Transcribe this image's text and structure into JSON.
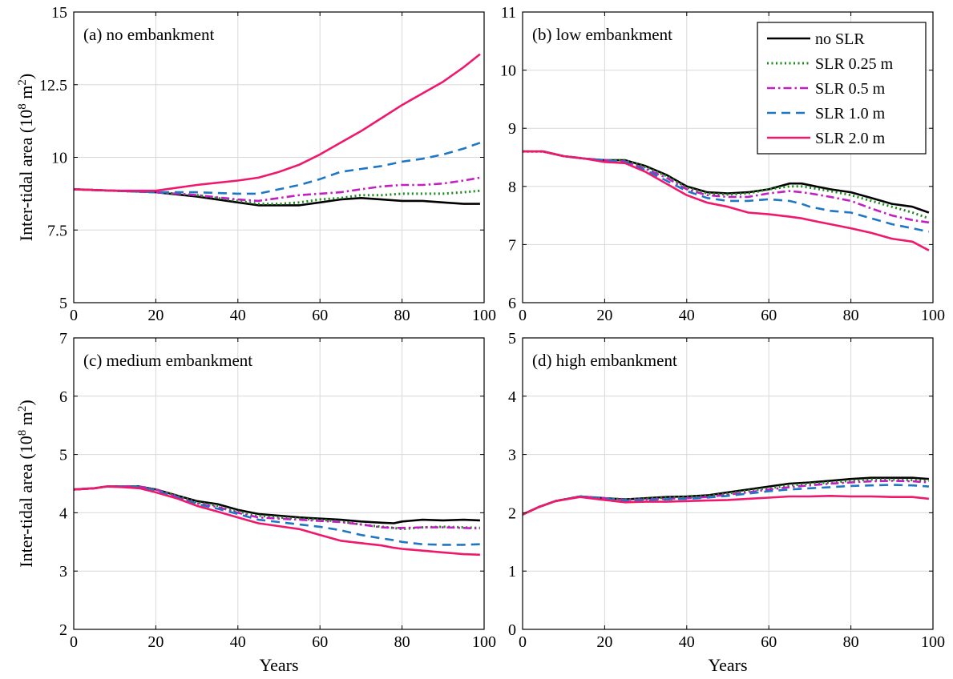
{
  "legend": [
    {
      "name": "no SLR",
      "color": "#000000",
      "dash": "solid"
    },
    {
      "name": "SLR 0.25 m",
      "color": "#1a8a1a",
      "dash": "dotted"
    },
    {
      "name": "SLR 0.5 m",
      "color": "#c21fc2",
      "dash": "dashdot"
    },
    {
      "name": "SLR 1.0 m",
      "color": "#1f77c4",
      "dash": "dashed"
    },
    {
      "name": "SLR 2.0 m",
      "color": "#f0186c",
      "dash": "solid"
    }
  ],
  "chart_data": [
    {
      "type": "line",
      "label": "(a)  no embankment",
      "xlabel": "",
      "ylabel": "Inter-tidal area (10^8 m^2)",
      "xlim": [
        0,
        100
      ],
      "ylim": [
        5,
        15
      ],
      "xticks": [
        0,
        20,
        40,
        60,
        80,
        100
      ],
      "yticks": [
        5,
        7.5,
        10,
        12.5,
        15
      ],
      "ytick_labels": [
        "5",
        "7.5",
        "10",
        "12.5",
        "15"
      ],
      "x": [
        0,
        10,
        20,
        30,
        40,
        45,
        50,
        55,
        60,
        65,
        70,
        75,
        80,
        85,
        90,
        95,
        99
      ],
      "series": [
        {
          "name": "no SLR",
          "values": [
            8.9,
            8.85,
            8.8,
            8.65,
            8.45,
            8.35,
            8.35,
            8.35,
            8.45,
            8.55,
            8.6,
            8.55,
            8.5,
            8.5,
            8.45,
            8.4,
            8.4
          ]
        },
        {
          "name": "SLR 0.25 m",
          "values": [
            8.9,
            8.85,
            8.8,
            8.7,
            8.5,
            8.4,
            8.4,
            8.45,
            8.55,
            8.6,
            8.7,
            8.7,
            8.75,
            8.75,
            8.75,
            8.8,
            8.85
          ]
        },
        {
          "name": "SLR 0.5 m",
          "values": [
            8.9,
            8.85,
            8.8,
            8.7,
            8.55,
            8.5,
            8.6,
            8.7,
            8.75,
            8.8,
            8.9,
            9.0,
            9.05,
            9.05,
            9.1,
            9.2,
            9.3
          ]
        },
        {
          "name": "SLR 1.0 m",
          "values": [
            8.9,
            8.85,
            8.8,
            8.8,
            8.75,
            8.75,
            8.9,
            9.05,
            9.25,
            9.5,
            9.6,
            9.7,
            9.85,
            9.95,
            10.1,
            10.3,
            10.5
          ]
        },
        {
          "name": "SLR 2.0 m",
          "values": [
            8.9,
            8.85,
            8.85,
            9.05,
            9.2,
            9.3,
            9.5,
            9.75,
            10.1,
            10.5,
            10.9,
            11.35,
            11.8,
            12.2,
            12.6,
            13.1,
            13.55
          ]
        }
      ]
    },
    {
      "type": "line",
      "label": "(b)  low embankment",
      "xlabel": "",
      "ylabel": "",
      "xlim": [
        0,
        100
      ],
      "ylim": [
        6,
        11
      ],
      "xticks": [
        0,
        20,
        40,
        60,
        80,
        100
      ],
      "yticks": [
        6,
        7,
        8,
        9,
        10,
        11
      ],
      "ytick_labels": [
        "6",
        "7",
        "8",
        "9",
        "10",
        "11"
      ],
      "x": [
        0,
        5,
        10,
        15,
        20,
        25,
        30,
        35,
        40,
        45,
        50,
        55,
        60,
        65,
        68,
        70,
        75,
        80,
        85,
        90,
        95,
        99
      ],
      "series": [
        {
          "name": "no SLR",
          "values": [
            8.6,
            8.6,
            8.52,
            8.48,
            8.45,
            8.45,
            8.35,
            8.2,
            8.0,
            7.9,
            7.88,
            7.9,
            7.95,
            8.05,
            8.05,
            8.02,
            7.95,
            7.9,
            7.8,
            7.7,
            7.65,
            7.55
          ]
        },
        {
          "name": "SLR 0.25 m",
          "values": [
            8.6,
            8.6,
            8.52,
            8.48,
            8.45,
            8.45,
            8.33,
            8.18,
            7.98,
            7.88,
            7.86,
            7.88,
            7.95,
            8.0,
            8.0,
            7.98,
            7.92,
            7.85,
            7.75,
            7.65,
            7.55,
            7.45
          ]
        },
        {
          "name": "SLR 0.5 m",
          "values": [
            8.6,
            8.6,
            8.52,
            8.48,
            8.45,
            8.43,
            8.3,
            8.15,
            7.95,
            7.85,
            7.82,
            7.82,
            7.88,
            7.92,
            7.9,
            7.88,
            7.82,
            7.75,
            7.62,
            7.5,
            7.42,
            7.38
          ]
        },
        {
          "name": "SLR 1.0 m",
          "values": [
            8.6,
            8.6,
            8.52,
            8.48,
            8.45,
            8.42,
            8.28,
            8.1,
            7.92,
            7.8,
            7.75,
            7.75,
            7.78,
            7.75,
            7.7,
            7.65,
            7.58,
            7.55,
            7.45,
            7.35,
            7.28,
            7.22
          ]
        },
        {
          "name": "SLR 2.0 m",
          "values": [
            8.6,
            8.6,
            8.52,
            8.48,
            8.42,
            8.4,
            8.25,
            8.05,
            7.85,
            7.72,
            7.65,
            7.55,
            7.52,
            7.48,
            7.45,
            7.42,
            7.35,
            7.28,
            7.2,
            7.1,
            7.05,
            6.9
          ]
        }
      ]
    },
    {
      "type": "line",
      "label": "(c)  medium embankment",
      "xlabel": "Years",
      "ylabel": "Inter-tidal area (10^8 m^2)",
      "xlim": [
        0,
        100
      ],
      "ylim": [
        2,
        7
      ],
      "xticks": [
        0,
        20,
        40,
        60,
        80,
        100
      ],
      "yticks": [
        2,
        3,
        4,
        5,
        6,
        7
      ],
      "ytick_labels": [
        "2",
        "3",
        "4",
        "5",
        "6",
        "7"
      ],
      "x": [
        0,
        5,
        8,
        12,
        16,
        20,
        25,
        30,
        35,
        40,
        45,
        50,
        55,
        60,
        65,
        70,
        75,
        78,
        80,
        85,
        90,
        95,
        99
      ],
      "series": [
        {
          "name": "no SLR",
          "values": [
            4.4,
            4.42,
            4.45,
            4.45,
            4.45,
            4.4,
            4.3,
            4.2,
            4.15,
            4.05,
            3.98,
            3.95,
            3.92,
            3.9,
            3.88,
            3.85,
            3.83,
            3.82,
            3.85,
            3.88,
            3.87,
            3.88,
            3.87
          ]
        },
        {
          "name": "SLR 0.25 m",
          "values": [
            4.4,
            4.42,
            4.45,
            4.45,
            4.45,
            4.4,
            4.3,
            4.18,
            4.12,
            4.02,
            3.95,
            3.92,
            3.9,
            3.88,
            3.85,
            3.8,
            3.76,
            3.74,
            3.72,
            3.75,
            3.76,
            3.75,
            3.74
          ]
        },
        {
          "name": "SLR 0.5 m",
          "values": [
            4.4,
            4.42,
            4.45,
            4.45,
            4.45,
            4.4,
            4.28,
            4.16,
            4.1,
            4.0,
            3.92,
            3.9,
            3.88,
            3.86,
            3.84,
            3.8,
            3.75,
            3.74,
            3.74,
            3.75,
            3.75,
            3.74,
            3.73
          ]
        },
        {
          "name": "SLR 1.0 m",
          "values": [
            4.4,
            4.42,
            4.45,
            4.45,
            4.44,
            4.38,
            4.27,
            4.15,
            4.07,
            3.98,
            3.88,
            3.84,
            3.8,
            3.76,
            3.7,
            3.62,
            3.56,
            3.53,
            3.5,
            3.46,
            3.45,
            3.45,
            3.46
          ]
        },
        {
          "name": "SLR 2.0 m",
          "values": [
            4.4,
            4.42,
            4.45,
            4.44,
            4.42,
            4.35,
            4.25,
            4.12,
            4.02,
            3.92,
            3.82,
            3.77,
            3.72,
            3.62,
            3.52,
            3.48,
            3.44,
            3.4,
            3.38,
            3.35,
            3.32,
            3.29,
            3.28
          ]
        }
      ]
    },
    {
      "type": "line",
      "label": "(d)  high embankment",
      "xlabel": "Years",
      "ylabel": "",
      "xlim": [
        0,
        100
      ],
      "ylim": [
        0,
        5
      ],
      "xticks": [
        0,
        20,
        40,
        60,
        80,
        100
      ],
      "yticks": [
        0,
        1,
        2,
        3,
        4,
        5
      ],
      "ytick_labels": [
        "0",
        "1",
        "2",
        "3",
        "4",
        "5"
      ],
      "x": [
        0,
        4,
        8,
        14,
        20,
        25,
        30,
        35,
        40,
        45,
        50,
        55,
        60,
        65,
        70,
        75,
        80,
        85,
        90,
        95,
        99
      ],
      "series": [
        {
          "name": "no SLR",
          "values": [
            1.97,
            2.1,
            2.2,
            2.28,
            2.25,
            2.23,
            2.25,
            2.27,
            2.28,
            2.3,
            2.35,
            2.4,
            2.45,
            2.5,
            2.52,
            2.55,
            2.58,
            2.6,
            2.6,
            2.6,
            2.58
          ]
        },
        {
          "name": "SLR 0.25 m",
          "values": [
            1.97,
            2.1,
            2.2,
            2.28,
            2.25,
            2.23,
            2.24,
            2.26,
            2.27,
            2.29,
            2.33,
            2.38,
            2.42,
            2.47,
            2.5,
            2.52,
            2.55,
            2.57,
            2.57,
            2.56,
            2.55
          ]
        },
        {
          "name": "SLR 0.5 m",
          "values": [
            1.97,
            2.1,
            2.2,
            2.28,
            2.25,
            2.22,
            2.23,
            2.24,
            2.25,
            2.27,
            2.31,
            2.35,
            2.4,
            2.44,
            2.47,
            2.5,
            2.52,
            2.54,
            2.55,
            2.54,
            2.52
          ]
        },
        {
          "name": "SLR 1.0 m",
          "values": [
            1.97,
            2.1,
            2.2,
            2.28,
            2.24,
            2.21,
            2.22,
            2.23,
            2.24,
            2.26,
            2.29,
            2.33,
            2.37,
            2.4,
            2.42,
            2.44,
            2.46,
            2.47,
            2.48,
            2.47,
            2.45
          ]
        },
        {
          "name": "SLR 2.0 m",
          "values": [
            1.97,
            2.1,
            2.2,
            2.27,
            2.22,
            2.18,
            2.19,
            2.19,
            2.2,
            2.21,
            2.22,
            2.24,
            2.26,
            2.28,
            2.28,
            2.29,
            2.28,
            2.28,
            2.27,
            2.27,
            2.24
          ]
        }
      ]
    }
  ]
}
